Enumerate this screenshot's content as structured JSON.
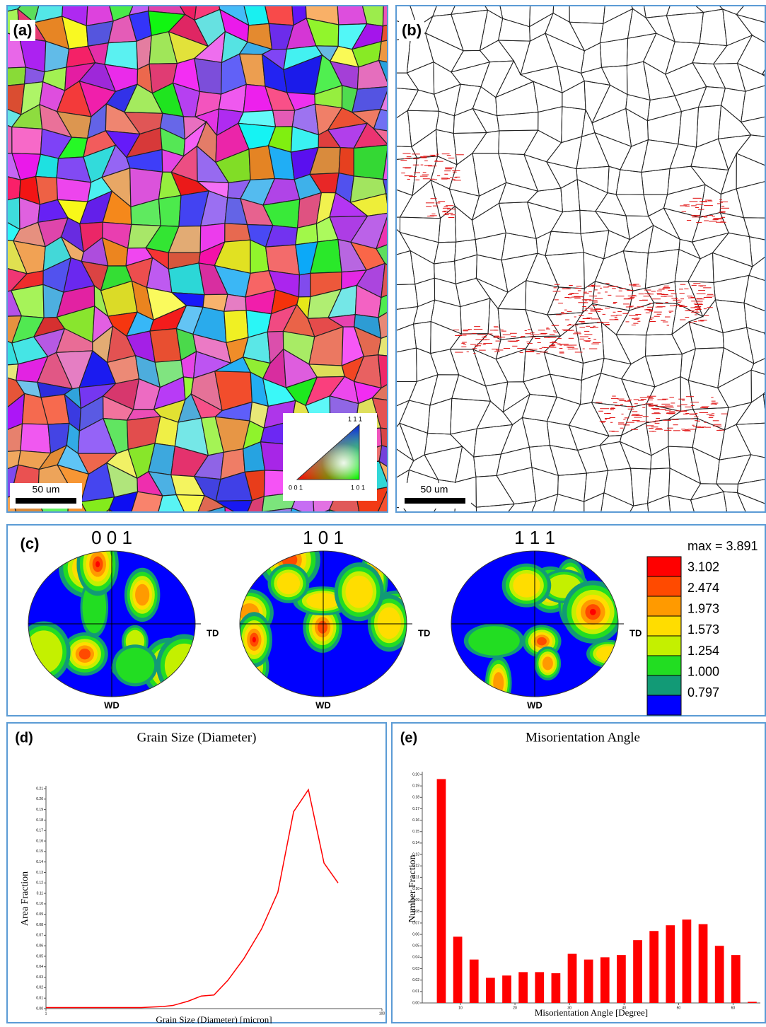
{
  "panels": {
    "a": {
      "label": "(a)",
      "scale_bar": "50 um",
      "ipf_legend": {
        "top": "1 1 1",
        "left": "0 0 1",
        "right": "1 0 1"
      }
    },
    "b": {
      "label": "(b)",
      "scale_bar": "50 um"
    },
    "c": {
      "label": "(c)",
      "pole_figures": [
        {
          "title": "0 0 1",
          "right_axis": "TD",
          "bottom_axis": "WD"
        },
        {
          "title": "1 0 1",
          "right_axis": "TD",
          "bottom_axis": "WD"
        },
        {
          "title": "1 1 1",
          "right_axis": "TD",
          "bottom_axis": "WD"
        }
      ],
      "legend": [
        {
          "label": "max = 3.891",
          "color": "#ff0000"
        },
        {
          "label": "3.102",
          "color": "#ff4a00"
        },
        {
          "label": "2.474",
          "color": "#ff9a00"
        },
        {
          "label": "1.973",
          "color": "#ffdd00"
        },
        {
          "label": "1.573",
          "color": "#c4f000"
        },
        {
          "label": "1.254",
          "color": "#22dd22"
        },
        {
          "label": "1.000",
          "color": "#129a76"
        },
        {
          "label": "0.797",
          "color": "#0000ff"
        }
      ]
    }
  },
  "chart_data": [
    {
      "type": "line",
      "panel_label": "(d)",
      "title": "Grain Size (Diameter)",
      "x_label": "Grain Size (Diameter) [micron]",
      "y_label": "Area Fraction",
      "x": [
        1,
        1.4,
        2.3,
        3.7,
        5,
        5.7,
        7,
        8.4,
        10,
        12.1,
        15.1,
        19.2,
        24,
        29.8,
        36.5,
        45.2,
        54.8
      ],
      "values": [
        0.001,
        0.001,
        0.001,
        0.001,
        0.002,
        0.003,
        0.007,
        0.012,
        0.013,
        0.027,
        0.048,
        0.076,
        0.111,
        0.188,
        0.209,
        0.139,
        0.12
      ],
      "color": "#ff0000",
      "log_x": true,
      "xlim": [
        1,
        100
      ],
      "xticks": [
        1,
        100
      ],
      "ylim": [
        0,
        0.21
      ],
      "yticks": [
        {
          "value": 0,
          "label": "0.00"
        },
        0.01,
        0.02,
        0.03,
        0.04,
        0.05,
        0.06,
        0.07,
        0.08,
        0.09,
        {
          "value": 0.1,
          "label": "0.10"
        },
        0.11,
        0.12,
        0.13,
        0.14,
        0.15,
        0.16,
        0.17,
        0.18,
        0.19,
        {
          "value": 0.2,
          "label": "0.20"
        },
        0.21
      ]
    },
    {
      "type": "histogram",
      "panel_label": "(e)",
      "title": "Misorientation Angle",
      "x_label": "Misorientation Angle [Degree]",
      "y_label": "Number Fraction",
      "bins": [
        5,
        8,
        11,
        14,
        17,
        20,
        23,
        26,
        29,
        32,
        35,
        38,
        41,
        44,
        47,
        50,
        53,
        56,
        59,
        62,
        65
      ],
      "values": [
        0.196,
        0.058,
        0.038,
        0.022,
        0.024,
        0.027,
        0.027,
        0.026,
        0.043,
        0.038,
        0.04,
        0.042,
        0.055,
        0.063,
        0.068,
        0.073,
        0.069,
        0.05,
        0.042,
        0.001
      ],
      "color": "#ff0000",
      "xlim": [
        3,
        65
      ],
      "xticks": [
        10,
        20,
        30,
        40,
        50,
        60
      ],
      "ylim": [
        0,
        0.2
      ],
      "yticks": [
        {
          "value": 0,
          "label": "0.00"
        },
        0.01,
        0.02,
        0.03,
        0.04,
        0.05,
        0.06,
        0.07,
        0.08,
        0.09,
        {
          "value": 0.1,
          "label": "0.10"
        },
        0.11,
        0.12,
        0.13,
        0.14,
        0.15,
        0.16,
        0.17,
        0.18,
        0.19,
        {
          "value": 0.2,
          "label": "0.20"
        }
      ]
    }
  ]
}
